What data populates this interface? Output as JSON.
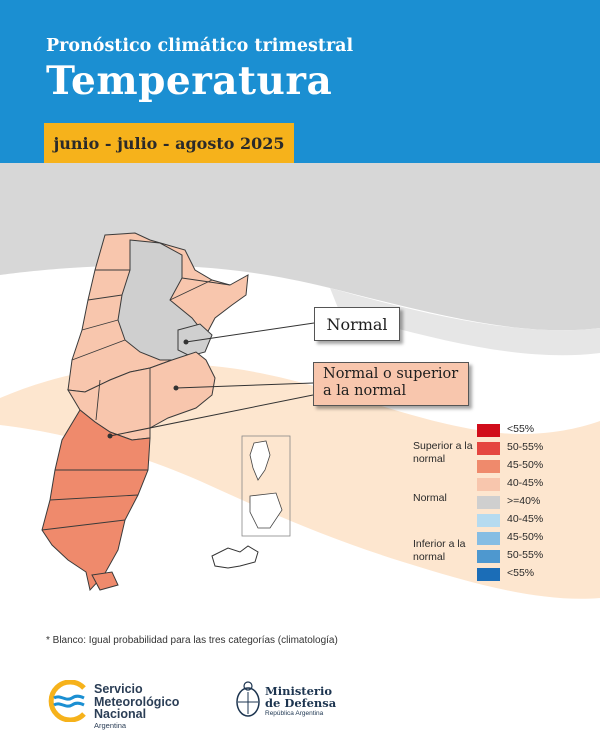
{
  "header": {
    "subtitle": "Pronóstico climático trimestral",
    "title": "Temperatura",
    "period": "junio - julio - agosto 2025"
  },
  "callouts": {
    "normal": "Normal",
    "superior_line1": "Normal o superior",
    "superior_line2": "a la normal"
  },
  "legend": {
    "groups": {
      "superior": "Superior a la normal",
      "normal": "Normal",
      "inferior": "Inferior a la normal"
    },
    "items": [
      {
        "label": "<55%",
        "color": "#d10d1a"
      },
      {
        "label": "50-55%",
        "color": "#e5463f"
      },
      {
        "label": "45-50%",
        "color": "#ef8a6c"
      },
      {
        "label": "40-45%",
        "color": "#f8c6ad"
      },
      {
        "label": ">=40%",
        "color": "#cfcfcf"
      },
      {
        "label": "40-45%",
        "color": "#b6dbf0"
      },
      {
        "label": "45-50%",
        "color": "#86bde3"
      },
      {
        "label": "50-55%",
        "color": "#4e98cf"
      },
      {
        "label": "<55%",
        "color": "#1b6db7"
      }
    ]
  },
  "footnote": "*  Blanco: Igual probabilidad para las tres categorías (climatología)",
  "logos": {
    "smn_line1": "Servicio",
    "smn_line2": "Meteorológico",
    "smn_line3": "Nacional",
    "smn_sub": "Argentina",
    "mindef_line1": "Ministerio",
    "mindef_line2": "de Defensa",
    "mindef_sub": "República Argentina"
  },
  "colors": {
    "header": "#1b8fd2",
    "period_bg": "#f6b21b",
    "normal": "#cfcfcf",
    "light_warm": "#f8c6ad",
    "warm": "#ef8a6c"
  }
}
